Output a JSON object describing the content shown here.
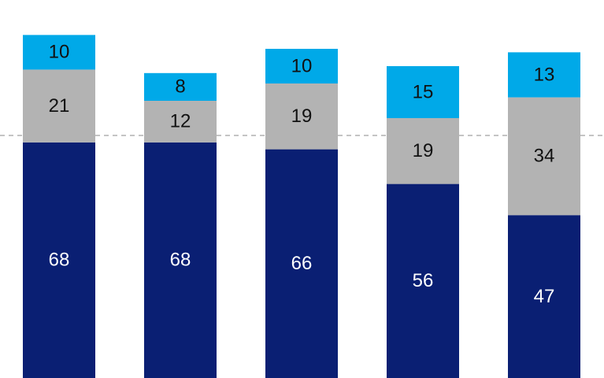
{
  "chart_data": {
    "type": "stacked_bar",
    "categories": [
      null,
      null,
      null,
      null,
      null
    ],
    "series": [
      {
        "color": "#0a1f73",
        "values": [
          68,
          68,
          66,
          56,
          47
        ]
      },
      {
        "color": "#b3b3b3",
        "values": [
          21,
          12,
          19,
          19,
          34
        ]
      },
      {
        "color": "#00a9e8",
        "values": [
          10,
          8,
          10,
          15,
          13
        ]
      }
    ],
    "ylim": [
      0,
      100
    ]
  }
}
